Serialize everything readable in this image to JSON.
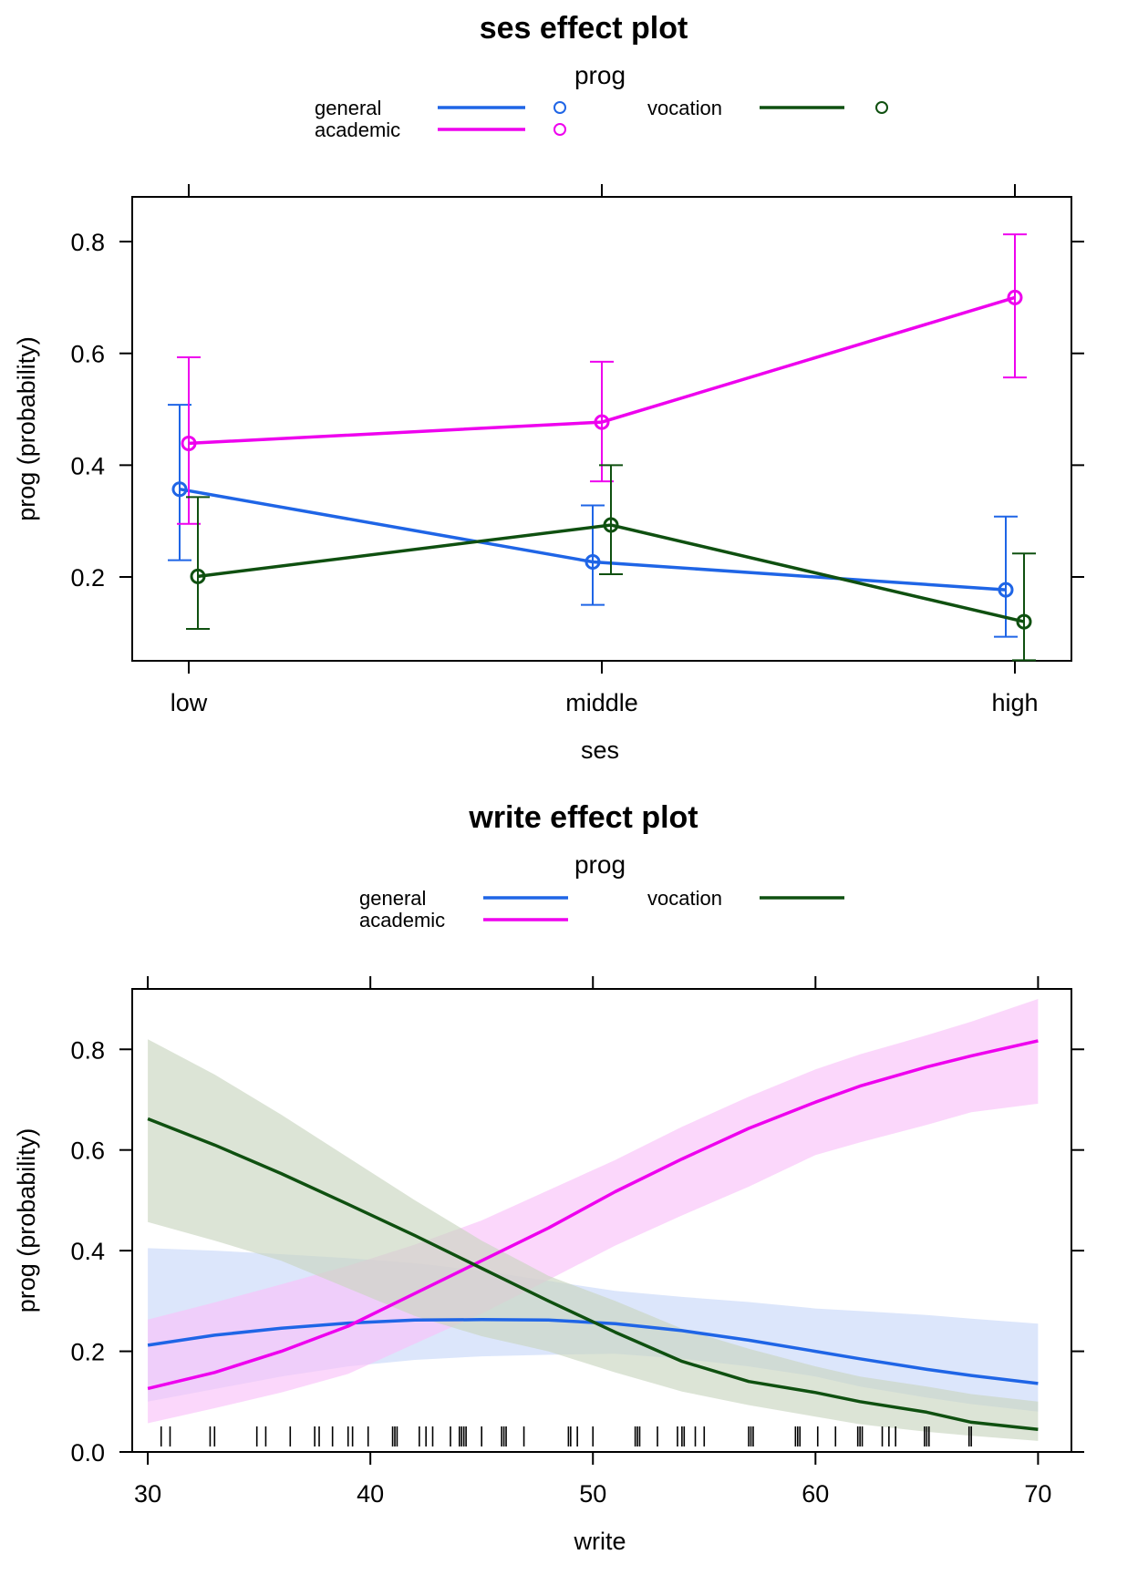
{
  "chart_data": [
    {
      "type": "line",
      "title": "ses effect plot",
      "xlabel": "ses",
      "ylabel": "prog (probability)",
      "legend_title": "prog",
      "legend_placement": "top",
      "categories": [
        "low",
        "middle",
        "high"
      ],
      "yticks": [
        0.2,
        0.4,
        0.6,
        0.8
      ],
      "ylim": [
        0.05,
        0.88
      ],
      "grid": false,
      "series": [
        {
          "name": "general",
          "color": "#1f65e6",
          "values": [
            0.357,
            0.227,
            0.177
          ],
          "lower": [
            0.23,
            0.15,
            0.093
          ],
          "upper": [
            0.508,
            0.328,
            0.308
          ]
        },
        {
          "name": "academic",
          "color": "#ee00ee",
          "values": [
            0.439,
            0.477,
            0.7
          ],
          "lower": [
            0.295,
            0.371,
            0.557
          ],
          "upper": [
            0.593,
            0.585,
            0.813
          ]
        },
        {
          "name": "vocation",
          "color": "#0f5010",
          "values": [
            0.201,
            0.293,
            0.12
          ],
          "lower": [
            0.107,
            0.205,
            0.051
          ],
          "upper": [
            0.343,
            0.4,
            0.242
          ]
        }
      ]
    },
    {
      "type": "line",
      "title": "write effect plot",
      "xlabel": "write",
      "ylabel": "prog (probability)",
      "legend_title": "prog",
      "legend_placement": "top",
      "xticks": [
        30,
        40,
        50,
        60,
        70
      ],
      "xlim": [
        29.3,
        71.5
      ],
      "yticks": [
        0.0,
        0.2,
        0.4,
        0.6,
        0.8
      ],
      "ylim": [
        0.0,
        0.92
      ],
      "grid": false,
      "x": [
        30,
        33,
        36,
        39,
        42,
        45,
        48,
        51,
        54,
        57,
        60,
        62,
        65,
        67,
        70
      ],
      "series": [
        {
          "name": "general",
          "color": "#1f65e6",
          "band_color": "#c9d9f9",
          "values": [
            0.212,
            0.232,
            0.246,
            0.256,
            0.262,
            0.263,
            0.262,
            0.255,
            0.241,
            0.222,
            0.2,
            0.185,
            0.164,
            0.152,
            0.136
          ],
          "lower": [
            0.1,
            0.125,
            0.15,
            0.17,
            0.183,
            0.19,
            0.193,
            0.195,
            0.185,
            0.17,
            0.15,
            0.13,
            0.108,
            0.095,
            0.08
          ],
          "upper": [
            0.405,
            0.4,
            0.393,
            0.385,
            0.375,
            0.36,
            0.34,
            0.32,
            0.308,
            0.298,
            0.285,
            0.28,
            0.272,
            0.265,
            0.255
          ]
        },
        {
          "name": "academic",
          "color": "#ee00ee",
          "band_color": "#f9c2f9",
          "values": [
            0.126,
            0.158,
            0.2,
            0.25,
            0.315,
            0.38,
            0.445,
            0.517,
            0.582,
            0.643,
            0.695,
            0.727,
            0.765,
            0.787,
            0.817
          ],
          "lower": [
            0.057,
            0.087,
            0.118,
            0.155,
            0.215,
            0.275,
            0.342,
            0.41,
            0.47,
            0.527,
            0.59,
            0.615,
            0.65,
            0.675,
            0.692
          ],
          "upper": [
            0.263,
            0.297,
            0.333,
            0.37,
            0.412,
            0.46,
            0.52,
            0.58,
            0.646,
            0.706,
            0.76,
            0.79,
            0.828,
            0.855,
            0.9
          ]
        },
        {
          "name": "vocation",
          "color": "#0f5010",
          "band_color": "#c9d6c0",
          "values": [
            0.662,
            0.61,
            0.553,
            0.492,
            0.43,
            0.365,
            0.3,
            0.238,
            0.18,
            0.14,
            0.118,
            0.1,
            0.079,
            0.059,
            0.045
          ],
          "lower": [
            0.457,
            0.42,
            0.38,
            0.325,
            0.27,
            0.23,
            0.2,
            0.158,
            0.12,
            0.093,
            0.07,
            0.055,
            0.04,
            0.032,
            0.022
          ],
          "upper": [
            0.82,
            0.75,
            0.67,
            0.585,
            0.5,
            0.42,
            0.35,
            0.3,
            0.245,
            0.205,
            0.17,
            0.15,
            0.13,
            0.115,
            0.1
          ]
        }
      ],
      "rug": [
        30.6,
        31.0,
        32.8,
        33.0,
        34.9,
        35.3,
        36.4,
        37.5,
        37.7,
        38.3,
        39.0,
        39.2,
        39.9,
        41.0,
        41.1,
        41.2,
        42.2,
        42.5,
        42.8,
        43.6,
        44.0,
        44.1,
        44.2,
        44.3,
        45.0,
        45.9,
        46.0,
        46.1,
        46.9,
        48.9,
        49.0,
        49.3,
        50.0,
        51.9,
        52.0,
        52.1,
        52.9,
        53.8,
        54.0,
        54.1,
        54.6,
        55.0,
        57.0,
        57.1,
        57.2,
        59.1,
        59.2,
        59.3,
        60.1,
        60.9,
        61.9,
        62.0,
        62.1,
        63.0,
        63.3,
        63.6,
        64.9,
        65.0,
        65.1,
        66.9,
        67.0
      ]
    }
  ]
}
